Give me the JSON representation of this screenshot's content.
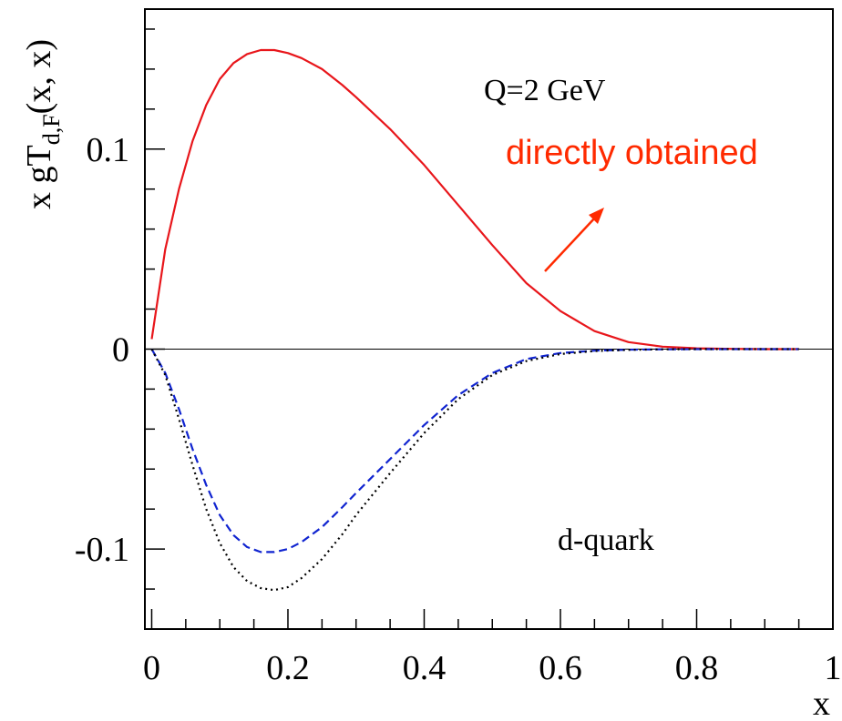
{
  "chart_data": {
    "type": "line",
    "xlabel": "x",
    "ylabel": {
      "main": "x gT",
      "sub": "d,F",
      "suffix": "(x, x)"
    },
    "xlim": [
      -0.01,
      1.0
    ],
    "ylim": [
      -0.14,
      0.17
    ],
    "x_ticks": [
      0,
      0.2,
      0.4,
      0.6,
      0.8,
      1
    ],
    "x_tick_labels": [
      "0",
      "0.2",
      "0.4",
      "0.6",
      "0.8",
      "1"
    ],
    "y_ticks": [
      -0.1,
      0,
      0.1
    ],
    "y_tick_labels": [
      "-0.1",
      "0",
      "0.1"
    ],
    "zero_line": true,
    "grid": false,
    "annotations": {
      "scale": "Q=2 GeV",
      "flavor": "d-quark",
      "highlight": "directly obtained",
      "highlight_color": "#ff2a00"
    },
    "series": [
      {
        "style": "solid",
        "color": "#e8161b",
        "x": [
          0.0,
          0.02,
          0.04,
          0.06,
          0.08,
          0.1,
          0.12,
          0.14,
          0.16,
          0.18,
          0.2,
          0.22,
          0.25,
          0.28,
          0.3,
          0.35,
          0.4,
          0.45,
          0.5,
          0.55,
          0.6,
          0.65,
          0.7,
          0.75,
          0.8,
          0.85,
          0.9,
          0.95
        ],
        "values": [
          0.005,
          0.05,
          0.08,
          0.104,
          0.122,
          0.135,
          0.143,
          0.1475,
          0.1495,
          0.1495,
          0.148,
          0.1455,
          0.14,
          0.132,
          0.126,
          0.11,
          0.092,
          0.072,
          0.052,
          0.033,
          0.019,
          0.009,
          0.0035,
          0.0012,
          0.0004,
          0.0001,
          0.0,
          0.0
        ]
      },
      {
        "style": "dashed",
        "color": "#1024d0",
        "x": [
          0.0,
          0.02,
          0.04,
          0.06,
          0.08,
          0.1,
          0.12,
          0.14,
          0.16,
          0.18,
          0.2,
          0.22,
          0.25,
          0.28,
          0.3,
          0.35,
          0.4,
          0.45,
          0.5,
          0.55,
          0.6,
          0.65,
          0.7,
          0.75,
          0.8,
          0.85,
          0.9,
          0.95
        ],
        "values": [
          0.0,
          -0.012,
          -0.03,
          -0.05,
          -0.068,
          -0.083,
          -0.093,
          -0.099,
          -0.1015,
          -0.1015,
          -0.1,
          -0.0965,
          -0.089,
          -0.079,
          -0.072,
          -0.055,
          -0.038,
          -0.023,
          -0.012,
          -0.005,
          -0.002,
          -0.0008,
          -0.0003,
          -0.0001,
          0.0,
          0.0,
          0.0,
          0.0
        ]
      },
      {
        "style": "dotted",
        "color": "#000000",
        "x": [
          0.0,
          0.02,
          0.04,
          0.06,
          0.08,
          0.1,
          0.12,
          0.14,
          0.16,
          0.18,
          0.2,
          0.22,
          0.25,
          0.28,
          0.3,
          0.35,
          0.4,
          0.45,
          0.5,
          0.55,
          0.6,
          0.65,
          0.7,
          0.75,
          0.8,
          0.85,
          0.9,
          0.95
        ],
        "values": [
          0.0,
          -0.013,
          -0.035,
          -0.058,
          -0.08,
          -0.097,
          -0.109,
          -0.116,
          -0.1195,
          -0.1205,
          -0.119,
          -0.1145,
          -0.105,
          -0.0925,
          -0.083,
          -0.062,
          -0.042,
          -0.025,
          -0.013,
          -0.006,
          -0.0025,
          -0.001,
          -0.0004,
          -0.0001,
          0.0,
          0.0,
          0.0,
          0.0
        ]
      }
    ]
  }
}
